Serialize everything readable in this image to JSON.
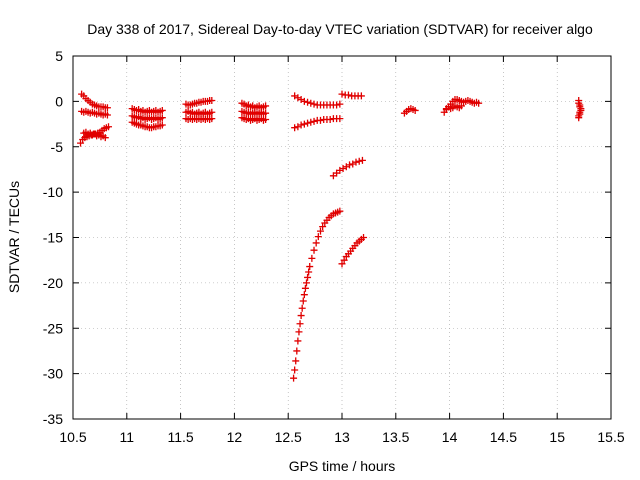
{
  "chart_data": {
    "type": "scatter",
    "title": "Day 338 of 2017, Sidereal Day-to-day VTEC variation (SDTVAR) for receiver algo",
    "xlabel": "GPS time / hours",
    "ylabel": "SDTVAR / TECUs",
    "xlim": [
      10.5,
      15.5
    ],
    "ylim": [
      -35,
      5
    ],
    "xticks": [
      "10.5",
      "11",
      "11.5",
      "12",
      "12.5",
      "13",
      "13.5",
      "14",
      "14.5",
      "15",
      "15.5"
    ],
    "yticks": [
      "5",
      "0",
      "-5",
      "-10",
      "-15",
      "-20",
      "-25",
      "-30",
      "-35"
    ],
    "grid": true,
    "marker": "+",
    "color": "#e00000",
    "series": [
      {
        "name": "s1",
        "x": [
          10.58,
          10.6,
          10.62,
          10.64,
          10.66,
          10.68,
          10.7,
          10.72,
          10.74,
          10.76,
          10.78,
          10.8,
          10.82
        ],
        "y": [
          0.8,
          0.6,
          0.3,
          0.1,
          -0.1,
          -0.3,
          -0.4,
          -0.5,
          -0.6,
          -0.6,
          -0.6,
          -0.7,
          -0.7
        ]
      },
      {
        "name": "s2",
        "x": [
          10.58,
          10.6,
          10.62,
          10.64,
          10.66,
          10.68,
          10.7,
          10.72,
          10.74,
          10.76,
          10.78,
          10.8,
          10.82
        ],
        "y": [
          -1.1,
          -1.2,
          -1.1,
          -1.2,
          -1.3,
          -1.2,
          -1.3,
          -1.4,
          -1.3,
          -1.4,
          -1.5,
          -1.4,
          -1.5
        ]
      },
      {
        "name": "s3",
        "x": [
          10.57,
          10.59,
          10.61,
          10.63,
          10.65,
          10.67,
          10.69,
          10.71,
          10.73,
          10.75,
          10.77,
          10.79,
          10.81,
          10.83
        ],
        "y": [
          -4.6,
          -4.2,
          -4.0,
          -3.9,
          -3.8,
          -3.7,
          -3.6,
          -3.6,
          -3.5,
          -3.4,
          -3.2,
          -3.0,
          -2.9,
          -2.8
        ]
      },
      {
        "name": "s4",
        "x": [
          10.6,
          10.62,
          10.64,
          10.66,
          10.68,
          10.7,
          10.72,
          10.74,
          10.76,
          10.78,
          10.8
        ],
        "y": [
          -3.5,
          -3.4,
          -3.6,
          -3.5,
          -3.7,
          -3.6,
          -3.8,
          -3.7,
          -3.9,
          -3.8,
          -4.0
        ]
      },
      {
        "name": "s5",
        "x": [
          11.05,
          11.07,
          11.09,
          11.11,
          11.13,
          11.15,
          11.17,
          11.19,
          11.21,
          11.23,
          11.25,
          11.27,
          11.29,
          11.31,
          11.33
        ],
        "y": [
          -0.8,
          -0.9,
          -1.0,
          -0.9,
          -1.1,
          -1.0,
          -1.2,
          -1.1,
          -1.0,
          -1.2,
          -1.1,
          -1.0,
          -1.2,
          -1.1,
          -1.0
        ]
      },
      {
        "name": "s6",
        "x": [
          11.05,
          11.07,
          11.09,
          11.11,
          11.13,
          11.15,
          11.17,
          11.19,
          11.21,
          11.23,
          11.25,
          11.27,
          11.29,
          11.31,
          11.33
        ],
        "y": [
          -1.6,
          -1.7,
          -1.8,
          -1.7,
          -1.9,
          -1.8,
          -2.0,
          -1.9,
          -1.8,
          -2.0,
          -1.9,
          -1.8,
          -2.0,
          -1.9,
          -1.8
        ]
      },
      {
        "name": "s7",
        "x": [
          11.05,
          11.07,
          11.09,
          11.11,
          11.13,
          11.15,
          11.17,
          11.19,
          11.21,
          11.23,
          11.25,
          11.27,
          11.29,
          11.31,
          11.33
        ],
        "y": [
          -2.3,
          -2.4,
          -2.5,
          -2.6,
          -2.6,
          -2.7,
          -2.8,
          -2.8,
          -2.9,
          -2.9,
          -2.8,
          -2.8,
          -2.7,
          -2.7,
          -2.6
        ]
      },
      {
        "name": "s8",
        "x": [
          11.55,
          11.57,
          11.59,
          11.61,
          11.63,
          11.65,
          11.67,
          11.69,
          11.71,
          11.73,
          11.75,
          11.77,
          11.79
        ],
        "y": [
          -0.3,
          -0.4,
          -0.4,
          -0.3,
          -0.2,
          -0.2,
          -0.1,
          -0.1,
          0.0,
          0.0,
          0.0,
          0.1,
          0.1
        ]
      },
      {
        "name": "s9",
        "x": [
          11.55,
          11.57,
          11.59,
          11.61,
          11.63,
          11.65,
          11.67,
          11.69,
          11.71,
          11.73,
          11.75,
          11.77,
          11.79
        ],
        "y": [
          -1.2,
          -1.1,
          -1.3,
          -1.2,
          -1.4,
          -1.3,
          -1.2,
          -1.4,
          -1.3,
          -1.2,
          -1.4,
          -1.3,
          -1.2
        ]
      },
      {
        "name": "s10",
        "x": [
          11.55,
          11.57,
          11.59,
          11.61,
          11.63,
          11.65,
          11.67,
          11.69,
          11.71,
          11.73,
          11.75,
          11.77,
          11.79
        ],
        "y": [
          -1.9,
          -2.0,
          -1.9,
          -2.0,
          -1.9,
          -2.0,
          -1.9,
          -2.0,
          -1.9,
          -2.0,
          -1.9,
          -2.0,
          -1.9
        ]
      },
      {
        "name": "s11",
        "x": [
          12.07,
          12.09,
          12.11,
          12.13,
          12.15,
          12.17,
          12.19,
          12.21,
          12.23,
          12.25,
          12.27,
          12.29
        ],
        "y": [
          -0.2,
          -0.3,
          -0.5,
          -0.4,
          -0.6,
          -0.5,
          -0.7,
          -0.6,
          -0.5,
          -0.7,
          -0.6,
          -0.5
        ]
      },
      {
        "name": "s12",
        "x": [
          12.07,
          12.09,
          12.11,
          12.13,
          12.15,
          12.17,
          12.19,
          12.21,
          12.23,
          12.25,
          12.27,
          12.29
        ],
        "y": [
          -1.1,
          -1.2,
          -1.3,
          -1.2,
          -1.4,
          -1.3,
          -1.2,
          -1.4,
          -1.3,
          -1.2,
          -1.4,
          -1.3
        ]
      },
      {
        "name": "s13",
        "x": [
          12.07,
          12.09,
          12.11,
          12.13,
          12.15,
          12.17,
          12.19,
          12.21,
          12.23,
          12.25,
          12.27,
          12.29
        ],
        "y": [
          -1.8,
          -1.9,
          -2.0,
          -1.9,
          -2.1,
          -2.0,
          -1.9,
          -2.1,
          -2.0,
          -1.9,
          -2.1,
          -2.0
        ]
      },
      {
        "name": "s14",
        "x": [
          12.56,
          12.59,
          12.62,
          12.65,
          12.68,
          12.71,
          12.74,
          12.77,
          12.8,
          12.83,
          12.86,
          12.89,
          12.92,
          12.95,
          12.98
        ],
        "y": [
          0.6,
          0.4,
          0.2,
          0.0,
          -0.1,
          -0.2,
          -0.3,
          -0.4,
          -0.4,
          -0.4,
          -0.4,
          -0.4,
          -0.4,
          -0.4,
          -0.3
        ]
      },
      {
        "name": "s15",
        "x": [
          12.56,
          12.59,
          12.62,
          12.65,
          12.68,
          12.71,
          12.74,
          12.77,
          12.8,
          12.83,
          12.86,
          12.89,
          12.92,
          12.95,
          12.98
        ],
        "y": [
          -2.9,
          -2.8,
          -2.6,
          -2.5,
          -2.4,
          -2.3,
          -2.2,
          -2.1,
          -2.1,
          -2.0,
          -2.0,
          -2.0,
          -1.9,
          -1.9,
          -1.9
        ]
      },
      {
        "name": "s16",
        "x": [
          13.0,
          13.03,
          13.06,
          13.09,
          13.12,
          13.15,
          13.18
        ],
        "y": [
          0.8,
          0.7,
          0.7,
          0.6,
          0.6,
          0.6,
          0.6
        ]
      },
      {
        "name": "s17",
        "x": [
          12.92,
          12.95,
          12.98,
          13.01,
          13.04,
          13.07,
          13.1,
          13.13,
          13.16,
          13.19
        ],
        "y": [
          -8.2,
          -7.9,
          -7.6,
          -7.4,
          -7.2,
          -7.0,
          -6.9,
          -6.7,
          -6.6,
          -6.5
        ]
      },
      {
        "name": "s18",
        "x": [
          12.55,
          12.56,
          12.57,
          12.58,
          12.59,
          12.6,
          12.61,
          12.62,
          12.63,
          12.64,
          12.65,
          12.66,
          12.67,
          12.68,
          12.69,
          12.7,
          12.72,
          12.74,
          12.76,
          12.78,
          12.8,
          12.82,
          12.84,
          12.86,
          12.88,
          12.9,
          12.92,
          12.94,
          12.96,
          12.98
        ],
        "y": [
          -30.5,
          -29.6,
          -28.6,
          -27.5,
          -26.4,
          -25.4,
          -24.5,
          -23.6,
          -22.8,
          -22.0,
          -21.3,
          -20.6,
          -20.0,
          -19.4,
          -18.8,
          -18.2,
          -17.3,
          -16.4,
          -15.6,
          -14.9,
          -14.3,
          -13.8,
          -13.4,
          -13.1,
          -12.8,
          -12.6,
          -12.4,
          -12.3,
          -12.2,
          -12.1
        ]
      },
      {
        "name": "s19",
        "x": [
          13.0,
          13.02,
          13.04,
          13.06,
          13.08,
          13.1,
          13.12,
          13.14,
          13.16,
          13.18,
          13.2
        ],
        "y": [
          -17.9,
          -17.5,
          -17.1,
          -16.8,
          -16.5,
          -16.2,
          -15.9,
          -15.6,
          -15.4,
          -15.2,
          -15.0
        ]
      },
      {
        "name": "s20",
        "x": [
          13.58,
          13.6,
          13.62,
          13.64,
          13.66,
          13.68
        ],
        "y": [
          -1.3,
          -1.1,
          -0.9,
          -0.8,
          -0.9,
          -1.0
        ]
      },
      {
        "name": "s21",
        "x": [
          13.95,
          13.97,
          13.99,
          14.01,
          14.03,
          14.05,
          14.07,
          14.09,
          14.11,
          14.13,
          14.15,
          14.17,
          14.19,
          14.21,
          14.23,
          14.25,
          14.27
        ],
        "y": [
          -1.2,
          -0.9,
          -0.6,
          -0.3,
          0.0,
          0.2,
          0.2,
          0.1,
          0.0,
          -0.1,
          0.0,
          0.1,
          0.0,
          -0.1,
          -0.2,
          -0.1,
          -0.2
        ]
      },
      {
        "name": "s22",
        "x": [
          13.97,
          13.99,
          14.01,
          14.03,
          14.05,
          14.07,
          14.09,
          14.11
        ],
        "y": [
          -0.8,
          -0.6,
          -0.8,
          -0.7,
          -0.5,
          -0.6,
          -0.7,
          -0.5
        ]
      },
      {
        "name": "s23",
        "x": [
          15.2,
          15.2,
          15.21,
          15.21,
          15.22,
          15.22,
          15.21,
          15.21,
          15.2,
          15.2
        ],
        "y": [
          0.1,
          -0.2,
          -0.4,
          -0.6,
          -0.8,
          -1.0,
          -1.2,
          -1.4,
          -1.6,
          -1.8
        ]
      }
    ]
  }
}
